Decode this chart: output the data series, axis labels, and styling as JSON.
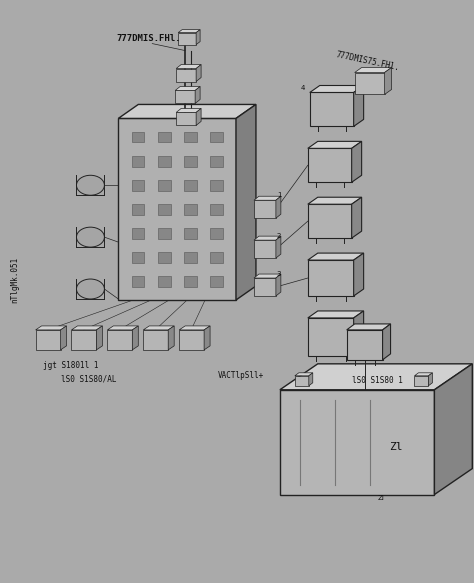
{
  "bg_color": "#aaaaaa",
  "line_color": "#222222",
  "face_light": "#c8c8c8",
  "face_mid": "#a8a8a8",
  "face_dark": "#888888",
  "face_darker": "#666666",
  "text_color": "#111111",
  "fig_width": 4.74,
  "fig_height": 5.83,
  "dpi": 100,
  "labels": {
    "top1": "777DMIS.FHl.",
    "top2": "777DMIS75.FHl.",
    "left": "nTlgMk.051",
    "bot1": "jgt S1801l 1",
    "bot2": "lS0 S1S80/AL",
    "bot3": "VACTlpSll+",
    "bot4": "lS0 S1S80 1",
    "bat_num": "Zl"
  }
}
